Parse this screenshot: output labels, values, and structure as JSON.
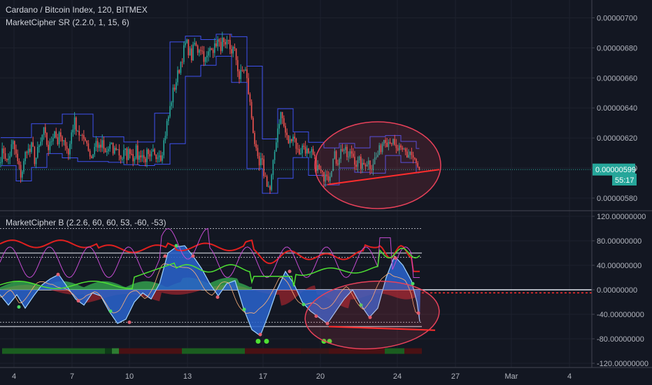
{
  "chart_data": [
    {
      "type": "candlestick",
      "title": "Cardano / Bitcoin Index, 120, BITMEX",
      "indicator": "MarketCipher SR (2.2.0, 1, 15, 6)",
      "ylim": [
        5.73e-06,
        7.1e-06
      ],
      "y_ticks": [
        "0.00000700",
        "0.00000680",
        "0.00000660",
        "0.00000640",
        "0.00000620",
        "0.00000600",
        "0.00000580"
      ],
      "y_tick_values": [
        7e-06,
        6.8e-06,
        6.6e-06,
        6.4e-06,
        6.2e-06,
        6e-06,
        5.8e-06
      ],
      "last_price": "0.00000599",
      "last_price_value": 5.99e-06,
      "countdown": "55:17",
      "close_path": [
        [
          0,
          6.07e-06
        ],
        [
          6,
          6.12e-06
        ],
        [
          10,
          6.03e-06
        ],
        [
          14,
          6.09e-06
        ],
        [
          18,
          6.17e-06
        ],
        [
          22,
          6.1e-06
        ],
        [
          26,
          6.02e-06
        ],
        [
          30,
          5.95e-06
        ],
        [
          34,
          6.03e-06
        ],
        [
          38,
          6.14e-06
        ],
        [
          42,
          6.1e-06
        ],
        [
          46,
          6.15e-06
        ],
        [
          50,
          6.04e-06
        ],
        [
          54,
          6.11e-06
        ],
        [
          58,
          6.16e-06
        ],
        [
          62,
          6.25e-06
        ],
        [
          66,
          6.18e-06
        ],
        [
          70,
          6.12e-06
        ],
        [
          74,
          6.2e-06
        ],
        [
          78,
          6.26e-06
        ],
        [
          82,
          6.17e-06
        ],
        [
          86,
          6.22e-06
        ],
        [
          90,
          6.14e-06
        ],
        [
          94,
          6.19e-06
        ],
        [
          98,
          6.08e-06
        ],
        [
          102,
          6.24e-06
        ],
        [
          106,
          6.31e-06
        ],
        [
          110,
          6.27e-06
        ],
        [
          114,
          6.22e-06
        ],
        [
          118,
          6.18e-06
        ],
        [
          122,
          6.21e-06
        ],
        [
          126,
          6.14e-06
        ],
        [
          130,
          6.06e-06
        ],
        [
          134,
          6.12e-06
        ],
        [
          138,
          6.18e-06
        ],
        [
          142,
          6.12e-06
        ],
        [
          146,
          6.16e-06
        ],
        [
          150,
          6.09e-06
        ],
        [
          154,
          6.12e-06
        ],
        [
          158,
          6.15e-06
        ],
        [
          162,
          6.1e-06
        ],
        [
          166,
          6.14e-06
        ],
        [
          170,
          6.1e-06
        ],
        [
          174,
          6.06e-06
        ],
        [
          178,
          6.11e-06
        ],
        [
          182,
          6.08e-06
        ],
        [
          186,
          6.13e-06
        ],
        [
          190,
          6.07e-06
        ],
        [
          194,
          6.12e-06
        ],
        [
          198,
          6.06e-06
        ],
        [
          202,
          6.11e-06
        ],
        [
          206,
          6.05e-06
        ],
        [
          210,
          6.09e-06
        ],
        [
          214,
          6.04e-06
        ],
        [
          218,
          6.1e-06
        ],
        [
          222,
          6.06e-06
        ],
        [
          226,
          6.12e-06
        ],
        [
          230,
          6.08e-06
        ],
        [
          234,
          6.17e-06
        ],
        [
          238,
          6.28e-06
        ],
        [
          242,
          6.37e-06
        ],
        [
          246,
          6.48e-06
        ],
        [
          250,
          6.55e-06
        ],
        [
          254,
          6.62e-06
        ],
        [
          258,
          6.7e-06
        ],
        [
          262,
          6.77e-06
        ],
        [
          266,
          6.84e-06
        ],
        [
          270,
          6.78e-06
        ],
        [
          274,
          6.74e-06
        ],
        [
          278,
          6.83e-06
        ],
        [
          282,
          6.78e-06
        ],
        [
          286,
          6.82e-06
        ],
        [
          290,
          6.76e-06
        ],
        [
          294,
          6.71e-06
        ],
        [
          298,
          6.76e-06
        ],
        [
          302,
          6.83e-06
        ],
        [
          306,
          6.78e-06
        ],
        [
          310,
          6.86e-06
        ],
        [
          314,
          6.8e-06
        ],
        [
          318,
          6.84e-06
        ],
        [
          322,
          6.78e-06
        ],
        [
          326,
          6.84e-06
        ],
        [
          330,
          6.78e-06
        ],
        [
          334,
          6.79e-06
        ],
        [
          338,
          6.72e-06
        ],
        [
          342,
          6.6e-06
        ],
        [
          346,
          6.64e-06
        ],
        [
          350,
          6.67e-06
        ],
        [
          354,
          6.55e-06
        ],
        [
          358,
          6.4e-06
        ],
        [
          362,
          6.25e-06
        ],
        [
          366,
          6.1e-06
        ],
        [
          370,
          6e-06
        ],
        [
          374,
          6.05e-06
        ],
        [
          378,
          5.95e-06
        ],
        [
          382,
          5.9e-06
        ],
        [
          386,
          5.85e-06
        ],
        [
          390,
          6e-06
        ],
        [
          394,
          6.17e-06
        ],
        [
          398,
          6.3e-06
        ],
        [
          402,
          6.37e-06
        ],
        [
          406,
          6.27e-06
        ],
        [
          410,
          6.2e-06
        ],
        [
          414,
          6.16e-06
        ],
        [
          418,
          6.24e-06
        ],
        [
          422,
          6.18e-06
        ],
        [
          426,
          6.1e-06
        ],
        [
          430,
          6.12e-06
        ],
        [
          434,
          6.15e-06
        ],
        [
          438,
          6.12e-06
        ],
        [
          442,
          6.06e-06
        ],
        [
          446,
          6.1e-06
        ],
        [
          450,
          6.04e-06
        ],
        [
          454,
          6e-06
        ],
        [
          458,
          5.97e-06
        ],
        [
          462,
          5.93e-06
        ],
        [
          466,
          6e-06
        ],
        [
          470,
          5.94e-06
        ],
        [
          474,
          6.02e-06
        ],
        [
          478,
          6.08e-06
        ],
        [
          482,
          6.04e-06
        ],
        [
          486,
          6.1e-06
        ],
        [
          490,
          6.14e-06
        ],
        [
          494,
          6.1e-06
        ],
        [
          498,
          6.06e-06
        ],
        [
          502,
          6.11e-06
        ],
        [
          506,
          6.07e-06
        ],
        [
          510,
          6.02e-06
        ],
        [
          514,
          6.04e-06
        ],
        [
          518,
          6e-06
        ],
        [
          522,
          6.04e-06
        ],
        [
          526,
          6.05e-06
        ],
        [
          530,
          6.01e-06
        ],
        [
          534,
          6.05e-06
        ],
        [
          538,
          6.07e-06
        ],
        [
          542,
          6.11e-06
        ],
        [
          546,
          6.16e-06
        ],
        [
          550,
          6.22e-06
        ],
        [
          554,
          6.17e-06
        ],
        [
          558,
          6.2e-06
        ],
        [
          562,
          6.16e-06
        ],
        [
          566,
          6.11e-06
        ],
        [
          570,
          6.13e-06
        ],
        [
          574,
          6.09e-06
        ],
        [
          578,
          6.12e-06
        ],
        [
          582,
          6.08e-06
        ],
        [
          586,
          6.11e-06
        ],
        [
          590,
          6.07e-06
        ],
        [
          594,
          6.03e-06
        ],
        [
          598,
          5.99e-06
        ]
      ],
      "annotations": [
        {
          "type": "ellipse",
          "label": "",
          "color": "#e8415a"
        },
        {
          "type": "trendline",
          "from": [
            468,
            5.89e-06
          ],
          "to": [
            628,
            5.99e-06
          ],
          "color": "#ff2d2d"
        }
      ]
    },
    {
      "type": "oscillator",
      "title": "MarketCipher B (2.2.6, 60, 60, 53, -60, -53)",
      "ylim": [
        -120,
        120
      ],
      "y_ticks": [
        "120.00000000",
        "80.00000000",
        "40.00000000",
        "0.00000000",
        "-40.00000000",
        "-80.00000000",
        "-120.00000000"
      ],
      "y_tick_values": [
        120,
        80,
        40,
        0,
        -40,
        -80,
        -120
      ],
      "levels": [
        100,
        60,
        53,
        0,
        -53,
        -60
      ],
      "wave_path": [
        [
          0,
          -8
        ],
        [
          12,
          -25
        ],
        [
          24,
          -8
        ],
        [
          36,
          -30
        ],
        [
          48,
          -10
        ],
        [
          60,
          8
        ],
        [
          72,
          18
        ],
        [
          84,
          25
        ],
        [
          96,
          5
        ],
        [
          108,
          -15
        ],
        [
          120,
          -25
        ],
        [
          132,
          -5
        ],
        [
          144,
          -10
        ],
        [
          156,
          -35
        ],
        [
          168,
          -55
        ],
        [
          180,
          -48
        ],
        [
          192,
          -20
        ],
        [
          204,
          -5
        ],
        [
          216,
          -15
        ],
        [
          228,
          10
        ],
        [
          240,
          60
        ],
        [
          252,
          70
        ],
        [
          264,
          72
        ],
        [
          276,
          55
        ],
        [
          288,
          35
        ],
        [
          300,
          10
        ],
        [
          312,
          -10
        ],
        [
          324,
          10
        ],
        [
          336,
          15
        ],
        [
          348,
          -30
        ],
        [
          360,
          -65
        ],
        [
          372,
          -75
        ],
        [
          384,
          -40
        ],
        [
          396,
          0
        ],
        [
          408,
          30
        ],
        [
          420,
          10
        ],
        [
          432,
          -20
        ],
        [
          444,
          -35
        ],
        [
          456,
          -45
        ],
        [
          468,
          -55
        ],
        [
          480,
          -35
        ],
        [
          492,
          -15
        ],
        [
          504,
          0
        ],
        [
          516,
          -25
        ],
        [
          528,
          -45
        ],
        [
          540,
          -30
        ],
        [
          552,
          20
        ],
        [
          564,
          55
        ],
        [
          576,
          40
        ],
        [
          588,
          15
        ],
        [
          596,
          -20
        ],
        [
          601,
          -60
        ]
      ],
      "annotations": [
        {
          "type": "ellipse",
          "label": "",
          "color": "#e8415a"
        },
        {
          "type": "trendline",
          "from": [
            470,
            -60
          ],
          "to": [
            622,
            -66
          ],
          "color": "#ff2d2d"
        }
      ]
    }
  ],
  "x_axis": {
    "ticks": [
      "4",
      "7",
      "10",
      "13",
      "17",
      "20",
      "24",
      "27",
      "Mar",
      "4"
    ],
    "tick_x": [
      20,
      103,
      185,
      268,
      376,
      458,
      568,
      651,
      731,
      814
    ]
  },
  "colors": {
    "background": "#131722",
    "up": "#26a69a",
    "down": "#ef5350",
    "band": "#3f51f0",
    "wave": "#2962c9",
    "price_line": "#26a69a",
    "annotation": "#e8415a",
    "trend": "#ff2d2d"
  }
}
